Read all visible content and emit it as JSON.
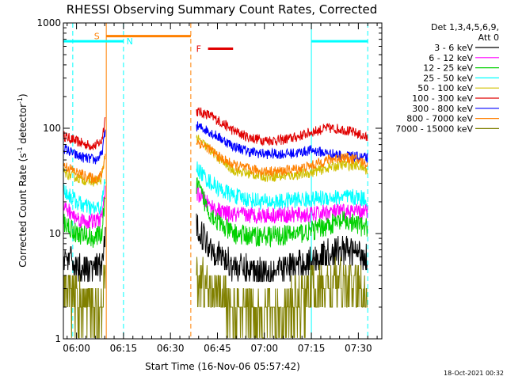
{
  "chart_data": {
    "type": "line",
    "title": "RHESSI Observing Summary Count Rates, Corrected",
    "xlabel": "Start Time (16-Nov-06 05:57:42)",
    "ylabel_main": "Corrected Count Rate (s",
    "ylabel_sup1": "-1",
    "ylabel_mid": " detector",
    "ylabel_sup2": "-1",
    "ylabel_end": ")",
    "yscale": "log",
    "ylim": [
      1,
      1000
    ],
    "xlim_minutes": [
      -4.2,
      97.5
    ],
    "x_tick_labels": [
      "06:00",
      "06:15",
      "06:30",
      "06:45",
      "07:00",
      "07:15",
      "07:30"
    ],
    "x_tick_minutes": [
      0,
      15,
      30,
      45,
      60,
      75,
      90
    ],
    "y_tick_labels": [
      "1",
      "10",
      "100",
      "1000"
    ],
    "y_tick_values": [
      1,
      10,
      100,
      1000
    ],
    "legend": {
      "header_line1": "Det 1,3,4,5,6,9,",
      "header_line2": "Att 0",
      "entries": [
        {
          "label": "3 - 6 keV",
          "color": "#000000"
        },
        {
          "label": "6 - 12 keV",
          "color": "#ff00ff"
        },
        {
          "label": "12 - 25 keV",
          "color": "#00d000"
        },
        {
          "label": "25 - 50 keV",
          "color": "#00ffff"
        },
        {
          "label": "50 - 100 keV",
          "color": "#d0c000"
        },
        {
          "label": "100 - 300 keV",
          "color": "#e00000"
        },
        {
          "label": "300 - 800 keV",
          "color": "#0000ff"
        },
        {
          "label": "800 - 7000 keV",
          "color": "#ff8000"
        },
        {
          "label": "7000 - 15000 keV",
          "color": "#808000"
        }
      ]
    },
    "flags": [
      {
        "letter": "S",
        "color": "#ff8000",
        "y_value": 750,
        "start_min": 9.5,
        "end_min": 36.5,
        "label_min": 6.5
      },
      {
        "letter": "N",
        "color": "#00ffff",
        "y_value": 670,
        "start_min": -4.2,
        "end_min": 15.0,
        "label_min": 17.0
      },
      {
        "letter": "N",
        "color": "#00ffff",
        "y_value": 670,
        "start_min": 75.0,
        "end_min": 93.0,
        "label_min": null
      },
      {
        "letter": "F",
        "color": "#e00000",
        "y_value": 570,
        "start_min": 42.0,
        "end_min": 50.0,
        "label_min": 39.0
      }
    ],
    "vlines": [
      {
        "minute": 9.5,
        "color": "#ff8000",
        "dashed": false
      },
      {
        "minute": 36.5,
        "color": "#ff8000",
        "dashed": true
      },
      {
        "minute": -1.2,
        "color": "#00ffff",
        "dashed": true
      },
      {
        "minute": 15.0,
        "color": "#00ffff",
        "dashed": true
      },
      {
        "minute": 75.0,
        "color": "#00ffff",
        "dashed": false
      },
      {
        "minute": 93.0,
        "color": "#00ffff",
        "dashed": true
      }
    ],
    "segments": [
      {
        "start_min": -4.2,
        "end_min": 9.3
      },
      {
        "start_min": 38.3,
        "end_min": 93.0
      }
    ],
    "series": [
      {
        "name": "100 - 300 keV",
        "color": "#e00000",
        "noise": 0.05,
        "x": [
          -4.2,
          0,
          3,
          6,
          8,
          9.3,
          38.3,
          42,
          46,
          50,
          55,
          60,
          65,
          70,
          75,
          80,
          85,
          90,
          93
        ],
        "y": [
          85,
          75,
          70,
          68,
          75,
          135,
          145,
          135,
          115,
          95,
          82,
          77,
          77,
          82,
          92,
          100,
          98,
          88,
          80
        ]
      },
      {
        "name": "300 - 800 keV",
        "color": "#0000ff",
        "noise": 0.05,
        "x": [
          -4.2,
          0,
          3,
          6,
          8,
          9.3,
          38.3,
          42,
          46,
          50,
          55,
          60,
          65,
          70,
          75,
          80,
          85,
          90,
          93
        ],
        "y": [
          65,
          55,
          52,
          50,
          55,
          100,
          105,
          95,
          80,
          68,
          60,
          57,
          57,
          58,
          62,
          58,
          55,
          53,
          52
        ]
      },
      {
        "name": "50 - 100 keV",
        "color": "#d0c000",
        "noise": 0.05,
        "x": [
          -4.2,
          0,
          3,
          6,
          8,
          9.3,
          38.3,
          42,
          46,
          50,
          55,
          60,
          65,
          70,
          75,
          80,
          85,
          90,
          93
        ],
        "y": [
          38,
          34,
          32,
          31,
          33,
          60,
          80,
          65,
          50,
          40,
          37,
          35,
          35,
          36,
          38,
          42,
          45,
          44,
          40
        ]
      },
      {
        "name": "800 - 7000 keV",
        "color": "#ff8000",
        "noise": 0.05,
        "x": [
          -4.2,
          0,
          3,
          6,
          8,
          9.3,
          38.3,
          42,
          46,
          50,
          55,
          60,
          65,
          70,
          75,
          80,
          85,
          90,
          93
        ],
        "y": [
          45,
          38,
          35,
          33,
          36,
          60,
          75,
          65,
          52,
          45,
          41,
          39,
          39,
          41,
          44,
          50,
          53,
          50,
          45
        ]
      },
      {
        "name": "25 - 50 keV",
        "color": "#00ffff",
        "noise": 0.08,
        "x": [
          -4.2,
          0,
          3,
          6,
          8,
          9.3,
          38.3,
          42,
          46,
          50,
          55,
          60,
          65,
          70,
          75,
          80,
          85,
          90,
          93
        ],
        "y": [
          26,
          20,
          18,
          17,
          18,
          35,
          42,
          32,
          26,
          23,
          21,
          20,
          20,
          21,
          21,
          22,
          22,
          22,
          21
        ]
      },
      {
        "name": "6 - 12 keV",
        "color": "#ff00ff",
        "noise": 0.08,
        "x": [
          -4.2,
          0,
          3,
          6,
          8,
          9.3,
          38.3,
          42,
          46,
          50,
          55,
          60,
          65,
          70,
          75,
          80,
          85,
          90,
          93
        ],
        "y": [
          18,
          14,
          13,
          13,
          14,
          28,
          25,
          19,
          16,
          15,
          15,
          15,
          15,
          15,
          15,
          16,
          16,
          16,
          16
        ]
      },
      {
        "name": "12 - 25 keV",
        "color": "#00d000",
        "noise": 0.1,
        "x": [
          -4.2,
          0,
          3,
          6,
          8,
          9.3,
          38.3,
          42,
          46,
          50,
          55,
          60,
          65,
          70,
          75,
          80,
          85,
          90,
          93
        ],
        "y": [
          13,
          10,
          9.5,
          9,
          10,
          22,
          30,
          17,
          12,
          10,
          9.5,
          9.5,
          9.5,
          10,
          10.5,
          12,
          13,
          12,
          11
        ]
      },
      {
        "name": "3 - 6 keV",
        "color": "#000000",
        "noise": 0.14,
        "x": [
          -4.2,
          0,
          3,
          6,
          8,
          9.3,
          38.3,
          42,
          46,
          50,
          55,
          60,
          65,
          70,
          75,
          80,
          85,
          90,
          93
        ],
        "y": [
          6,
          5,
          4.5,
          4.5,
          5,
          9,
          12,
          8,
          6,
          5,
          4.5,
          4.5,
          4.5,
          5,
          5.5,
          6.5,
          7,
          6.5,
          6
        ]
      },
      {
        "name": "7000 - 15000 keV",
        "color": "#808000",
        "noise": 0.25,
        "x": [
          -4.2,
          0,
          3,
          6,
          8,
          9.3,
          38.3,
          42,
          46,
          50,
          55,
          60,
          65,
          70,
          75,
          80,
          85,
          90,
          93
        ],
        "y": [
          3,
          2.2,
          2,
          2,
          2.2,
          4,
          4,
          3,
          2.5,
          2,
          1.8,
          1.8,
          1.8,
          2.2,
          2.8,
          3.2,
          3.2,
          3,
          2.8
        ]
      }
    ]
  },
  "footer": {
    "date_stamp": "18-Oct-2021 00:32"
  }
}
